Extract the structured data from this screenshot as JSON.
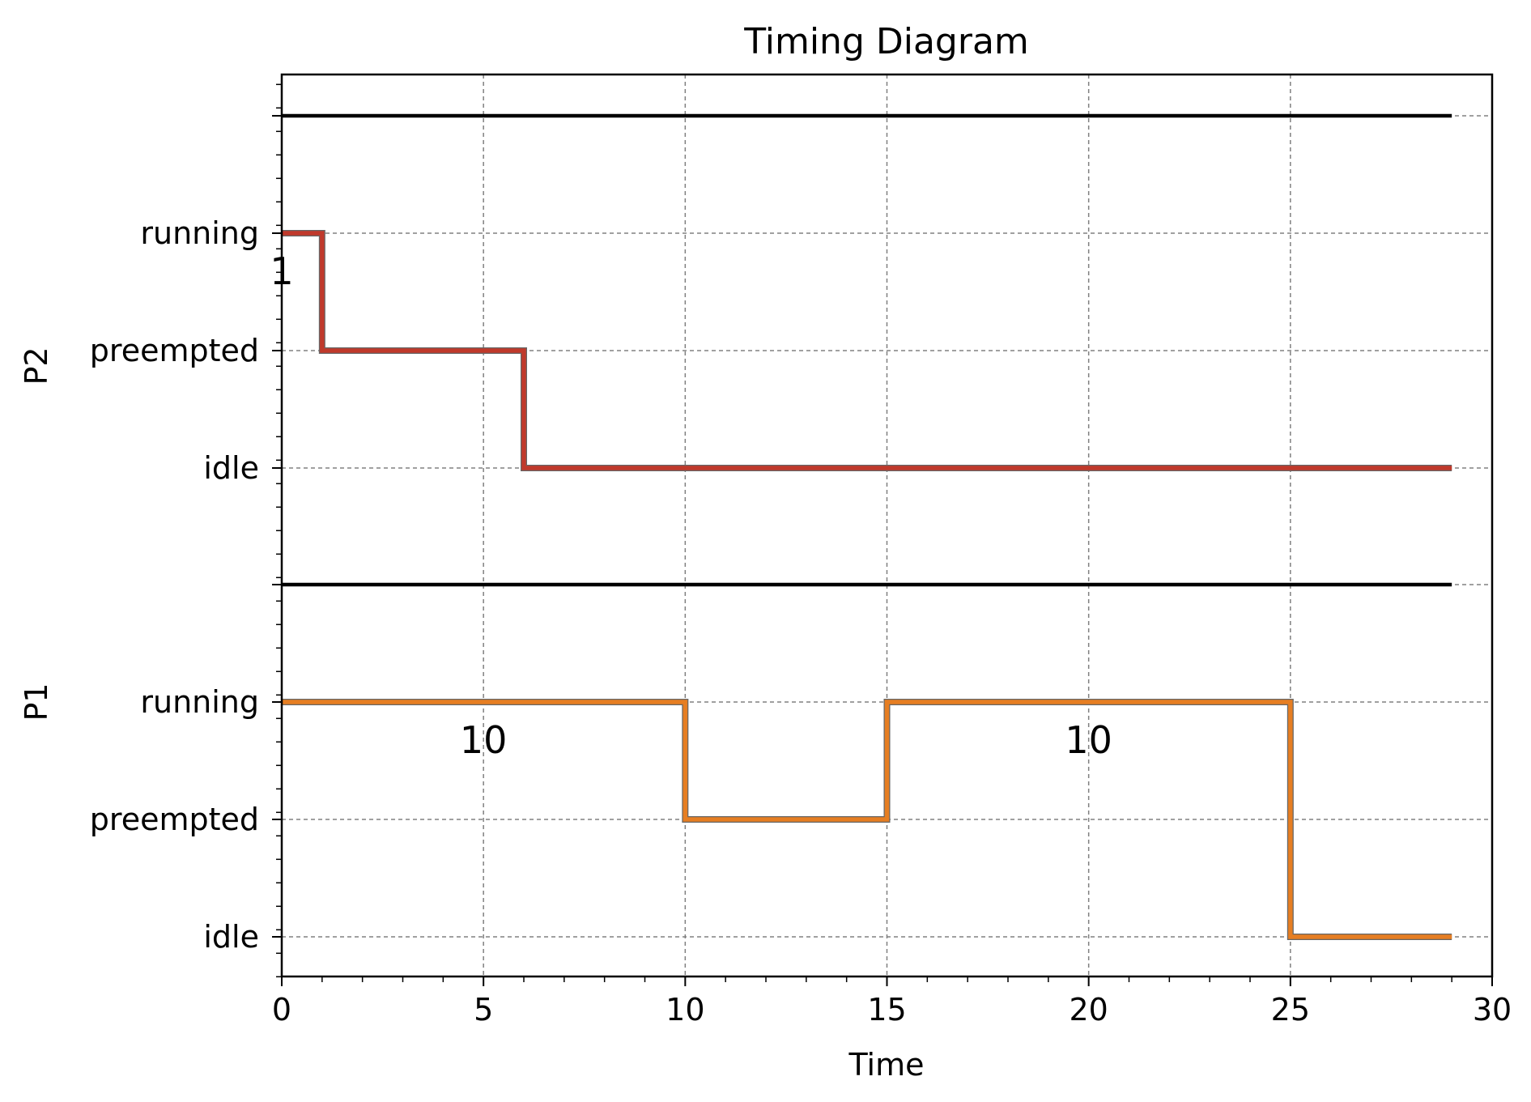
{
  "chart_data": {
    "type": "line",
    "subtype": "step",
    "title": "Timing Diagram",
    "xlabel": "Time",
    "xlim": [
      0,
      30
    ],
    "x_ticks": [
      0,
      5,
      10,
      15,
      20,
      25,
      30
    ],
    "x_tick_labels": [
      "0",
      "5",
      "10",
      "15",
      "20",
      "25",
      "30"
    ],
    "states": [
      "idle",
      "preempted",
      "running"
    ],
    "grid": true,
    "series": [
      {
        "name": "P2",
        "color": "#c0392b",
        "x": [
          0,
          1,
          6,
          29
        ],
        "y": [
          "running",
          "preempted",
          "idle",
          "idle"
        ],
        "annotations": [
          {
            "text": "1",
            "x": 0,
            "state": "running"
          }
        ]
      },
      {
        "name": "P1",
        "color": "#e67e22",
        "x": [
          0,
          10,
          15,
          25,
          29
        ],
        "y": [
          "running",
          "preempted",
          "running",
          "idle",
          "idle"
        ],
        "annotations": [
          {
            "text": "10",
            "x": 5,
            "state": "running"
          },
          {
            "text": "10",
            "x": 20,
            "state": "running"
          }
        ]
      }
    ]
  }
}
